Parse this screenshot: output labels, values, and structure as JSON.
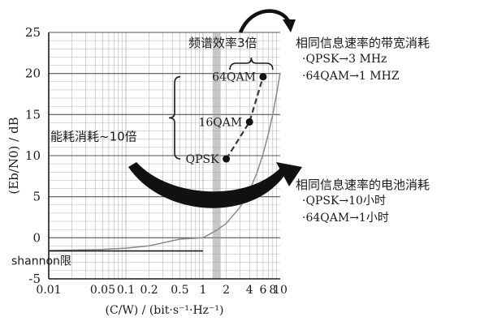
{
  "chart_data": {
    "type": "line",
    "title": "",
    "xlabel": "(C/W) / (bit·s⁻¹·Hz⁻¹)",
    "ylabel": "(Eb/N0) / dB",
    "x_scale": "log",
    "xlim": [
      0.01,
      10
    ],
    "ylim": [
      -5,
      25
    ],
    "grid": true,
    "x_tick_labels": [
      "0.01",
      "0.05",
      "0.1",
      "0.2",
      "0.5",
      "1",
      "2",
      "4",
      "6",
      "8",
      "10"
    ],
    "y_tick_labels": [
      "-5",
      "0",
      "5",
      "10",
      "15",
      "20",
      "25"
    ],
    "x_tick_values": [
      0.01,
      0.05,
      0.1,
      0.2,
      0.5,
      1,
      2,
      4,
      6,
      8,
      10
    ],
    "y_tick_values": [
      -5,
      0,
      5,
      10,
      15,
      20,
      25
    ],
    "shannon_limit": {
      "label": "shannon限",
      "value": -1.6,
      "marker_x": 1.5
    },
    "series": [
      {
        "x": [
          0.01,
          0.05,
          0.1,
          0.2,
          0.5,
          1,
          1.5,
          2,
          3,
          4,
          5,
          6,
          7,
          8,
          9,
          10
        ],
        "y": [
          -1.56,
          -1.42,
          -1.26,
          -0.97,
          -0.16,
          0.0,
          0.91,
          1.76,
          3.68,
          5.74,
          7.92,
          10.2,
          12.6,
          15.0,
          17.6,
          20.1
        ]
      }
    ],
    "points": [
      {
        "label": "QPSK",
        "x": 2,
        "y": 9.6
      },
      {
        "label": "16QAM",
        "x": 4,
        "y": 14.1
      },
      {
        "label": "64QAM",
        "x": 6,
        "y": 19.6
      }
    ],
    "annotations": {
      "energy": "能耗消耗~10倍",
      "spectrum": "频谱效率3倍"
    }
  },
  "notes": {
    "bandwidth": {
      "title": "相同信息速率的带宽消耗",
      "lines": [
        "·QPSK→3 MHz",
        "·64QAM→1 MHZ"
      ]
    },
    "battery": {
      "title": "相同信息速率的电池消耗",
      "lines": [
        "·QPSK→10小时",
        "·64QAM→1小时"
      ]
    }
  },
  "colors": {
    "grid": "#b5b5b5",
    "axis": "#1a1a1a",
    "curve": "#8a8a8a",
    "dash": "#3a3a3a",
    "marker_band": "#9a9a9a"
  }
}
